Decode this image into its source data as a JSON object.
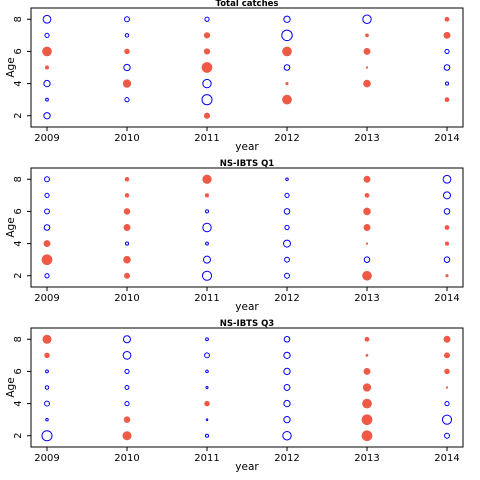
{
  "chart_data": [
    {
      "type": "scatter",
      "title": "Total catches",
      "xlabel": "year",
      "ylabel": "Age",
      "x_ticks": [
        "2009",
        "2010",
        "2011",
        "2012",
        "2013",
        "2014"
      ],
      "y_ticks": [
        "2",
        "4",
        "6",
        "8"
      ],
      "xlim": [
        2008.8,
        2014.2
      ],
      "ylim": [
        1.3,
        8.7
      ],
      "colors": {
        "positive": "#ee5a45",
        "negative": "#0000ff"
      },
      "points": [
        {
          "year": 2009,
          "age": 8,
          "sign": "negative",
          "size": 0.55
        },
        {
          "year": 2009,
          "age": 7,
          "sign": "negative",
          "size": 0.3
        },
        {
          "year": 2009,
          "age": 6,
          "sign": "positive",
          "size": 0.65
        },
        {
          "year": 2009,
          "age": 5,
          "sign": "positive",
          "size": 0.25
        },
        {
          "year": 2009,
          "age": 4,
          "sign": "negative",
          "size": 0.45
        },
        {
          "year": 2009,
          "age": 3,
          "sign": "negative",
          "size": 0.2
        },
        {
          "year": 2009,
          "age": 2,
          "sign": "negative",
          "size": 0.45
        },
        {
          "year": 2010,
          "age": 8,
          "sign": "negative",
          "size": 0.35
        },
        {
          "year": 2010,
          "age": 7,
          "sign": "negative",
          "size": 0.25
        },
        {
          "year": 2010,
          "age": 6,
          "sign": "positive",
          "size": 0.35
        },
        {
          "year": 2010,
          "age": 5,
          "sign": "negative",
          "size": 0.45
        },
        {
          "year": 2010,
          "age": 4,
          "sign": "positive",
          "size": 0.55
        },
        {
          "year": 2010,
          "age": 3,
          "sign": "negative",
          "size": 0.3
        },
        {
          "year": 2011,
          "age": 8,
          "sign": "negative",
          "size": 0.3
        },
        {
          "year": 2011,
          "age": 7,
          "sign": "positive",
          "size": 0.4
        },
        {
          "year": 2011,
          "age": 6,
          "sign": "positive",
          "size": 0.4
        },
        {
          "year": 2011,
          "age": 5,
          "sign": "positive",
          "size": 0.72
        },
        {
          "year": 2011,
          "age": 4,
          "sign": "negative",
          "size": 0.6
        },
        {
          "year": 2011,
          "age": 3,
          "sign": "negative",
          "size": 0.72
        },
        {
          "year": 2011,
          "age": 2,
          "sign": "positive",
          "size": 0.4
        },
        {
          "year": 2012,
          "age": 8,
          "sign": "negative",
          "size": 0.45
        },
        {
          "year": 2012,
          "age": 7,
          "sign": "negative",
          "size": 0.75
        },
        {
          "year": 2012,
          "age": 6,
          "sign": "positive",
          "size": 0.65
        },
        {
          "year": 2012,
          "age": 5,
          "sign": "negative",
          "size": 0.4
        },
        {
          "year": 2012,
          "age": 4,
          "sign": "positive",
          "size": 0.18
        },
        {
          "year": 2012,
          "age": 3,
          "sign": "positive",
          "size": 0.65
        },
        {
          "year": 2013,
          "age": 8,
          "sign": "negative",
          "size": 0.6
        },
        {
          "year": 2013,
          "age": 7,
          "sign": "positive",
          "size": 0.22
        },
        {
          "year": 2013,
          "age": 6,
          "sign": "positive",
          "size": 0.45
        },
        {
          "year": 2013,
          "age": 5,
          "sign": "positive",
          "size": 0.08
        },
        {
          "year": 2013,
          "age": 4,
          "sign": "positive",
          "size": 0.5
        },
        {
          "year": 2014,
          "age": 8,
          "sign": "positive",
          "size": 0.3
        },
        {
          "year": 2014,
          "age": 7,
          "sign": "positive",
          "size": 0.45
        },
        {
          "year": 2014,
          "age": 6,
          "sign": "negative",
          "size": 0.3
        },
        {
          "year": 2014,
          "age": 5,
          "sign": "negative",
          "size": 0.4
        },
        {
          "year": 2014,
          "age": 4,
          "sign": "negative",
          "size": 0.22
        },
        {
          "year": 2014,
          "age": 3,
          "sign": "positive",
          "size": 0.3
        }
      ]
    },
    {
      "type": "scatter",
      "title": "NS-IBTS Q1",
      "xlabel": "year",
      "ylabel": "Age",
      "x_ticks": [
        "2009",
        "2010",
        "2011",
        "2012",
        "2013",
        "2014"
      ],
      "y_ticks": [
        "2",
        "4",
        "6",
        "8"
      ],
      "xlim": [
        2008.8,
        2014.2
      ],
      "ylim": [
        1.3,
        8.7
      ],
      "colors": {
        "positive": "#ee5a45",
        "negative": "#0000ff"
      },
      "points": [
        {
          "year": 2009,
          "age": 8,
          "sign": "negative",
          "size": 0.35
        },
        {
          "year": 2009,
          "age": 7,
          "sign": "negative",
          "size": 0.3
        },
        {
          "year": 2009,
          "age": 6,
          "sign": "negative",
          "size": 0.35
        },
        {
          "year": 2009,
          "age": 5,
          "sign": "negative",
          "size": 0.4
        },
        {
          "year": 2009,
          "age": 4,
          "sign": "positive",
          "size": 0.45
        },
        {
          "year": 2009,
          "age": 3,
          "sign": "positive",
          "size": 0.72
        },
        {
          "year": 2009,
          "age": 2,
          "sign": "negative",
          "size": 0.3
        },
        {
          "year": 2010,
          "age": 8,
          "sign": "positive",
          "size": 0.28
        },
        {
          "year": 2010,
          "age": 7,
          "sign": "positive",
          "size": 0.28
        },
        {
          "year": 2010,
          "age": 6,
          "sign": "positive",
          "size": 0.42
        },
        {
          "year": 2010,
          "age": 5,
          "sign": "positive",
          "size": 0.45
        },
        {
          "year": 2010,
          "age": 4,
          "sign": "negative",
          "size": 0.22
        },
        {
          "year": 2010,
          "age": 3,
          "sign": "positive",
          "size": 0.5
        },
        {
          "year": 2010,
          "age": 2,
          "sign": "positive",
          "size": 0.38
        },
        {
          "year": 2011,
          "age": 8,
          "sign": "positive",
          "size": 0.62
        },
        {
          "year": 2011,
          "age": 7,
          "sign": "positive",
          "size": 0.25
        },
        {
          "year": 2011,
          "age": 6,
          "sign": "negative",
          "size": 0.22
        },
        {
          "year": 2011,
          "age": 5,
          "sign": "negative",
          "size": 0.6
        },
        {
          "year": 2011,
          "age": 4,
          "sign": "negative",
          "size": 0.2
        },
        {
          "year": 2011,
          "age": 3,
          "sign": "negative",
          "size": 0.5
        },
        {
          "year": 2011,
          "age": 2,
          "sign": "negative",
          "size": 0.65
        },
        {
          "year": 2012,
          "age": 8,
          "sign": "negative",
          "size": 0.18
        },
        {
          "year": 2012,
          "age": 7,
          "sign": "negative",
          "size": 0.3
        },
        {
          "year": 2012,
          "age": 6,
          "sign": "negative",
          "size": 0.4
        },
        {
          "year": 2012,
          "age": 5,
          "sign": "negative",
          "size": 0.3
        },
        {
          "year": 2012,
          "age": 4,
          "sign": "negative",
          "size": 0.5
        },
        {
          "year": 2012,
          "age": 3,
          "sign": "negative",
          "size": 0.35
        },
        {
          "year": 2012,
          "age": 2,
          "sign": "negative",
          "size": 0.35
        },
        {
          "year": 2013,
          "age": 8,
          "sign": "positive",
          "size": 0.45
        },
        {
          "year": 2013,
          "age": 7,
          "sign": "positive",
          "size": 0.3
        },
        {
          "year": 2013,
          "age": 6,
          "sign": "positive",
          "size": 0.5
        },
        {
          "year": 2013,
          "age": 5,
          "sign": "positive",
          "size": 0.45
        },
        {
          "year": 2013,
          "age": 4,
          "sign": "positive",
          "size": 0.08
        },
        {
          "year": 2013,
          "age": 3,
          "sign": "negative",
          "size": 0.4
        },
        {
          "year": 2013,
          "age": 2,
          "sign": "positive",
          "size": 0.65
        },
        {
          "year": 2014,
          "age": 8,
          "sign": "negative",
          "size": 0.55
        },
        {
          "year": 2014,
          "age": 7,
          "sign": "negative",
          "size": 0.5
        },
        {
          "year": 2014,
          "age": 6,
          "sign": "negative",
          "size": 0.4
        },
        {
          "year": 2014,
          "age": 5,
          "sign": "positive",
          "size": 0.3
        },
        {
          "year": 2014,
          "age": 4,
          "sign": "positive",
          "size": 0.25
        },
        {
          "year": 2014,
          "age": 3,
          "sign": "negative",
          "size": 0.4
        },
        {
          "year": 2014,
          "age": 2,
          "sign": "positive",
          "size": 0.18
        }
      ]
    },
    {
      "type": "scatter",
      "title": "NS-IBTS Q3",
      "xlabel": "year",
      "ylabel": "Age",
      "x_ticks": [
        "2009",
        "2010",
        "2011",
        "2012",
        "2013",
        "2014"
      ],
      "y_ticks": [
        "2",
        "4",
        "6",
        "8"
      ],
      "xlim": [
        2008.8,
        2014.2
      ],
      "ylim": [
        1.3,
        8.7
      ],
      "colors": {
        "positive": "#ee5a45",
        "negative": "#0000ff"
      },
      "points": [
        {
          "year": 2009,
          "age": 8,
          "sign": "positive",
          "size": 0.6
        },
        {
          "year": 2009,
          "age": 7,
          "sign": "positive",
          "size": 0.35
        },
        {
          "year": 2009,
          "age": 6,
          "sign": "negative",
          "size": 0.2
        },
        {
          "year": 2009,
          "age": 5,
          "sign": "negative",
          "size": 0.25
        },
        {
          "year": 2009,
          "age": 4,
          "sign": "negative",
          "size": 0.35
        },
        {
          "year": 2009,
          "age": 3,
          "sign": "negative",
          "size": 0.18
        },
        {
          "year": 2009,
          "age": 2,
          "sign": "negative",
          "size": 0.72
        },
        {
          "year": 2010,
          "age": 8,
          "sign": "negative",
          "size": 0.5
        },
        {
          "year": 2010,
          "age": 7,
          "sign": "negative",
          "size": 0.55
        },
        {
          "year": 2010,
          "age": 6,
          "sign": "negative",
          "size": 0.3
        },
        {
          "year": 2010,
          "age": 5,
          "sign": "negative",
          "size": 0.28
        },
        {
          "year": 2010,
          "age": 4,
          "sign": "negative",
          "size": 0.3
        },
        {
          "year": 2010,
          "age": 3,
          "sign": "positive",
          "size": 0.42
        },
        {
          "year": 2010,
          "age": 2,
          "sign": "positive",
          "size": 0.6
        },
        {
          "year": 2011,
          "age": 8,
          "sign": "negative",
          "size": 0.2
        },
        {
          "year": 2011,
          "age": 7,
          "sign": "negative",
          "size": 0.35
        },
        {
          "year": 2011,
          "age": 6,
          "sign": "negative",
          "size": 0.18
        },
        {
          "year": 2011,
          "age": 5,
          "sign": "negative",
          "size": 0.15
        },
        {
          "year": 2011,
          "age": 4,
          "sign": "positive",
          "size": 0.35
        },
        {
          "year": 2011,
          "age": 3,
          "sign": "negative",
          "size": 0.06
        },
        {
          "year": 2011,
          "age": 2,
          "sign": "negative",
          "size": 0.22
        },
        {
          "year": 2012,
          "age": 8,
          "sign": "negative",
          "size": 0.4
        },
        {
          "year": 2012,
          "age": 7,
          "sign": "negative",
          "size": 0.45
        },
        {
          "year": 2012,
          "age": 6,
          "sign": "negative",
          "size": 0.45
        },
        {
          "year": 2012,
          "age": 5,
          "sign": "negative",
          "size": 0.42
        },
        {
          "year": 2012,
          "age": 4,
          "sign": "negative",
          "size": 0.45
        },
        {
          "year": 2012,
          "age": 3,
          "sign": "negative",
          "size": 0.45
        },
        {
          "year": 2012,
          "age": 2,
          "sign": "negative",
          "size": 0.6
        },
        {
          "year": 2013,
          "age": 8,
          "sign": "positive",
          "size": 0.3
        },
        {
          "year": 2013,
          "age": 7,
          "sign": "positive",
          "size": 0.15
        },
        {
          "year": 2013,
          "age": 6,
          "sign": "positive",
          "size": 0.45
        },
        {
          "year": 2013,
          "age": 5,
          "sign": "positive",
          "size": 0.55
        },
        {
          "year": 2013,
          "age": 4,
          "sign": "positive",
          "size": 0.65
        },
        {
          "year": 2013,
          "age": 3,
          "sign": "positive",
          "size": 0.72
        },
        {
          "year": 2013,
          "age": 2,
          "sign": "positive",
          "size": 0.72
        },
        {
          "year": 2014,
          "age": 8,
          "sign": "positive",
          "size": 0.45
        },
        {
          "year": 2014,
          "age": 7,
          "sign": "positive",
          "size": 0.38
        },
        {
          "year": 2014,
          "age": 6,
          "sign": "positive",
          "size": 0.35
        },
        {
          "year": 2014,
          "age": 5,
          "sign": "positive",
          "size": 0.1
        },
        {
          "year": 2014,
          "age": 4,
          "sign": "negative",
          "size": 0.3
        },
        {
          "year": 2014,
          "age": 3,
          "sign": "negative",
          "size": 0.65
        },
        {
          "year": 2014,
          "age": 2,
          "sign": "negative",
          "size": 0.35
        }
      ]
    }
  ]
}
